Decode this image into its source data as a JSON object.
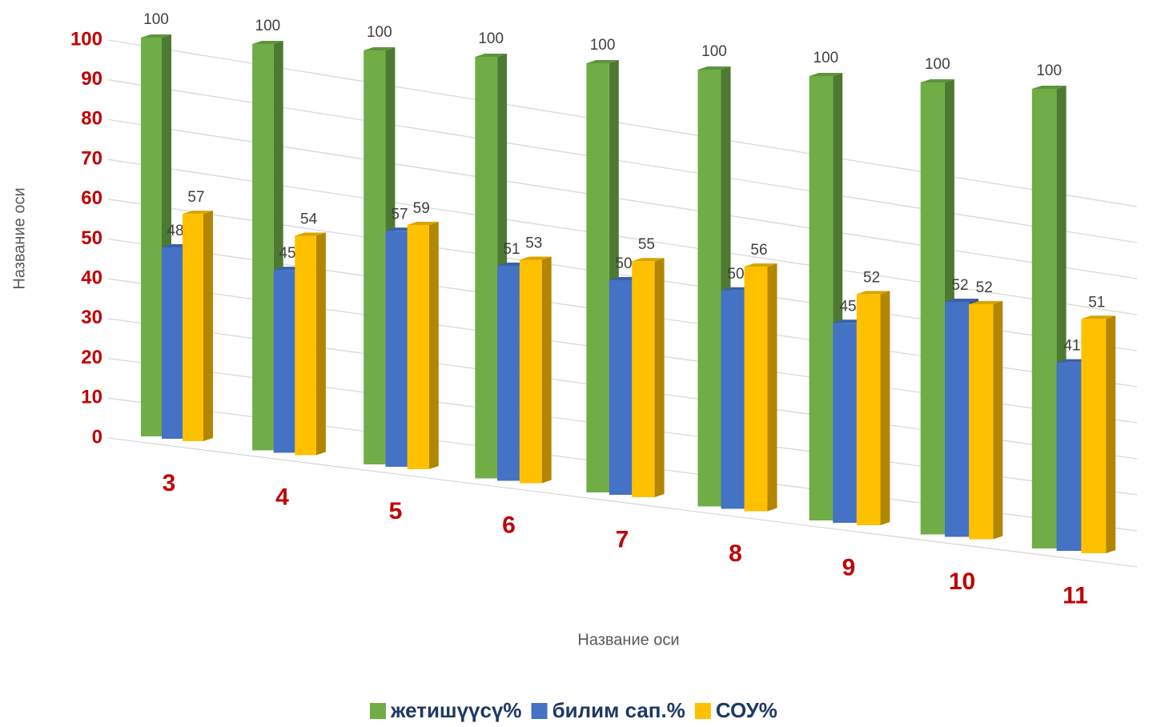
{
  "chart_data": {
    "type": "bar3d",
    "categories": [
      "3",
      "4",
      "5",
      "6",
      "7",
      "8",
      "9",
      "10",
      "11"
    ],
    "series": [
      {
        "name": "жетишүүсү%",
        "color": "#70ad47",
        "values": [
          100,
          100,
          100,
          100,
          100,
          100,
          100,
          100,
          100
        ]
      },
      {
        "name": "билим сап.%",
        "color": "#4472c4",
        "values": [
          48,
          45,
          57,
          51,
          50,
          50,
          45,
          52,
          41
        ]
      },
      {
        "name": "СОУ%",
        "color": "#ffc000",
        "values": [
          57,
          54,
          59,
          53,
          55,
          56,
          52,
          52,
          51
        ]
      }
    ],
    "ylim": [
      0,
      100
    ],
    "yticks": [
      0,
      10,
      20,
      30,
      40,
      50,
      60,
      70,
      80,
      90,
      100
    ],
    "x_label": "Название оси",
    "y_label": "Название оси",
    "grid": true,
    "legend": "bottom"
  }
}
